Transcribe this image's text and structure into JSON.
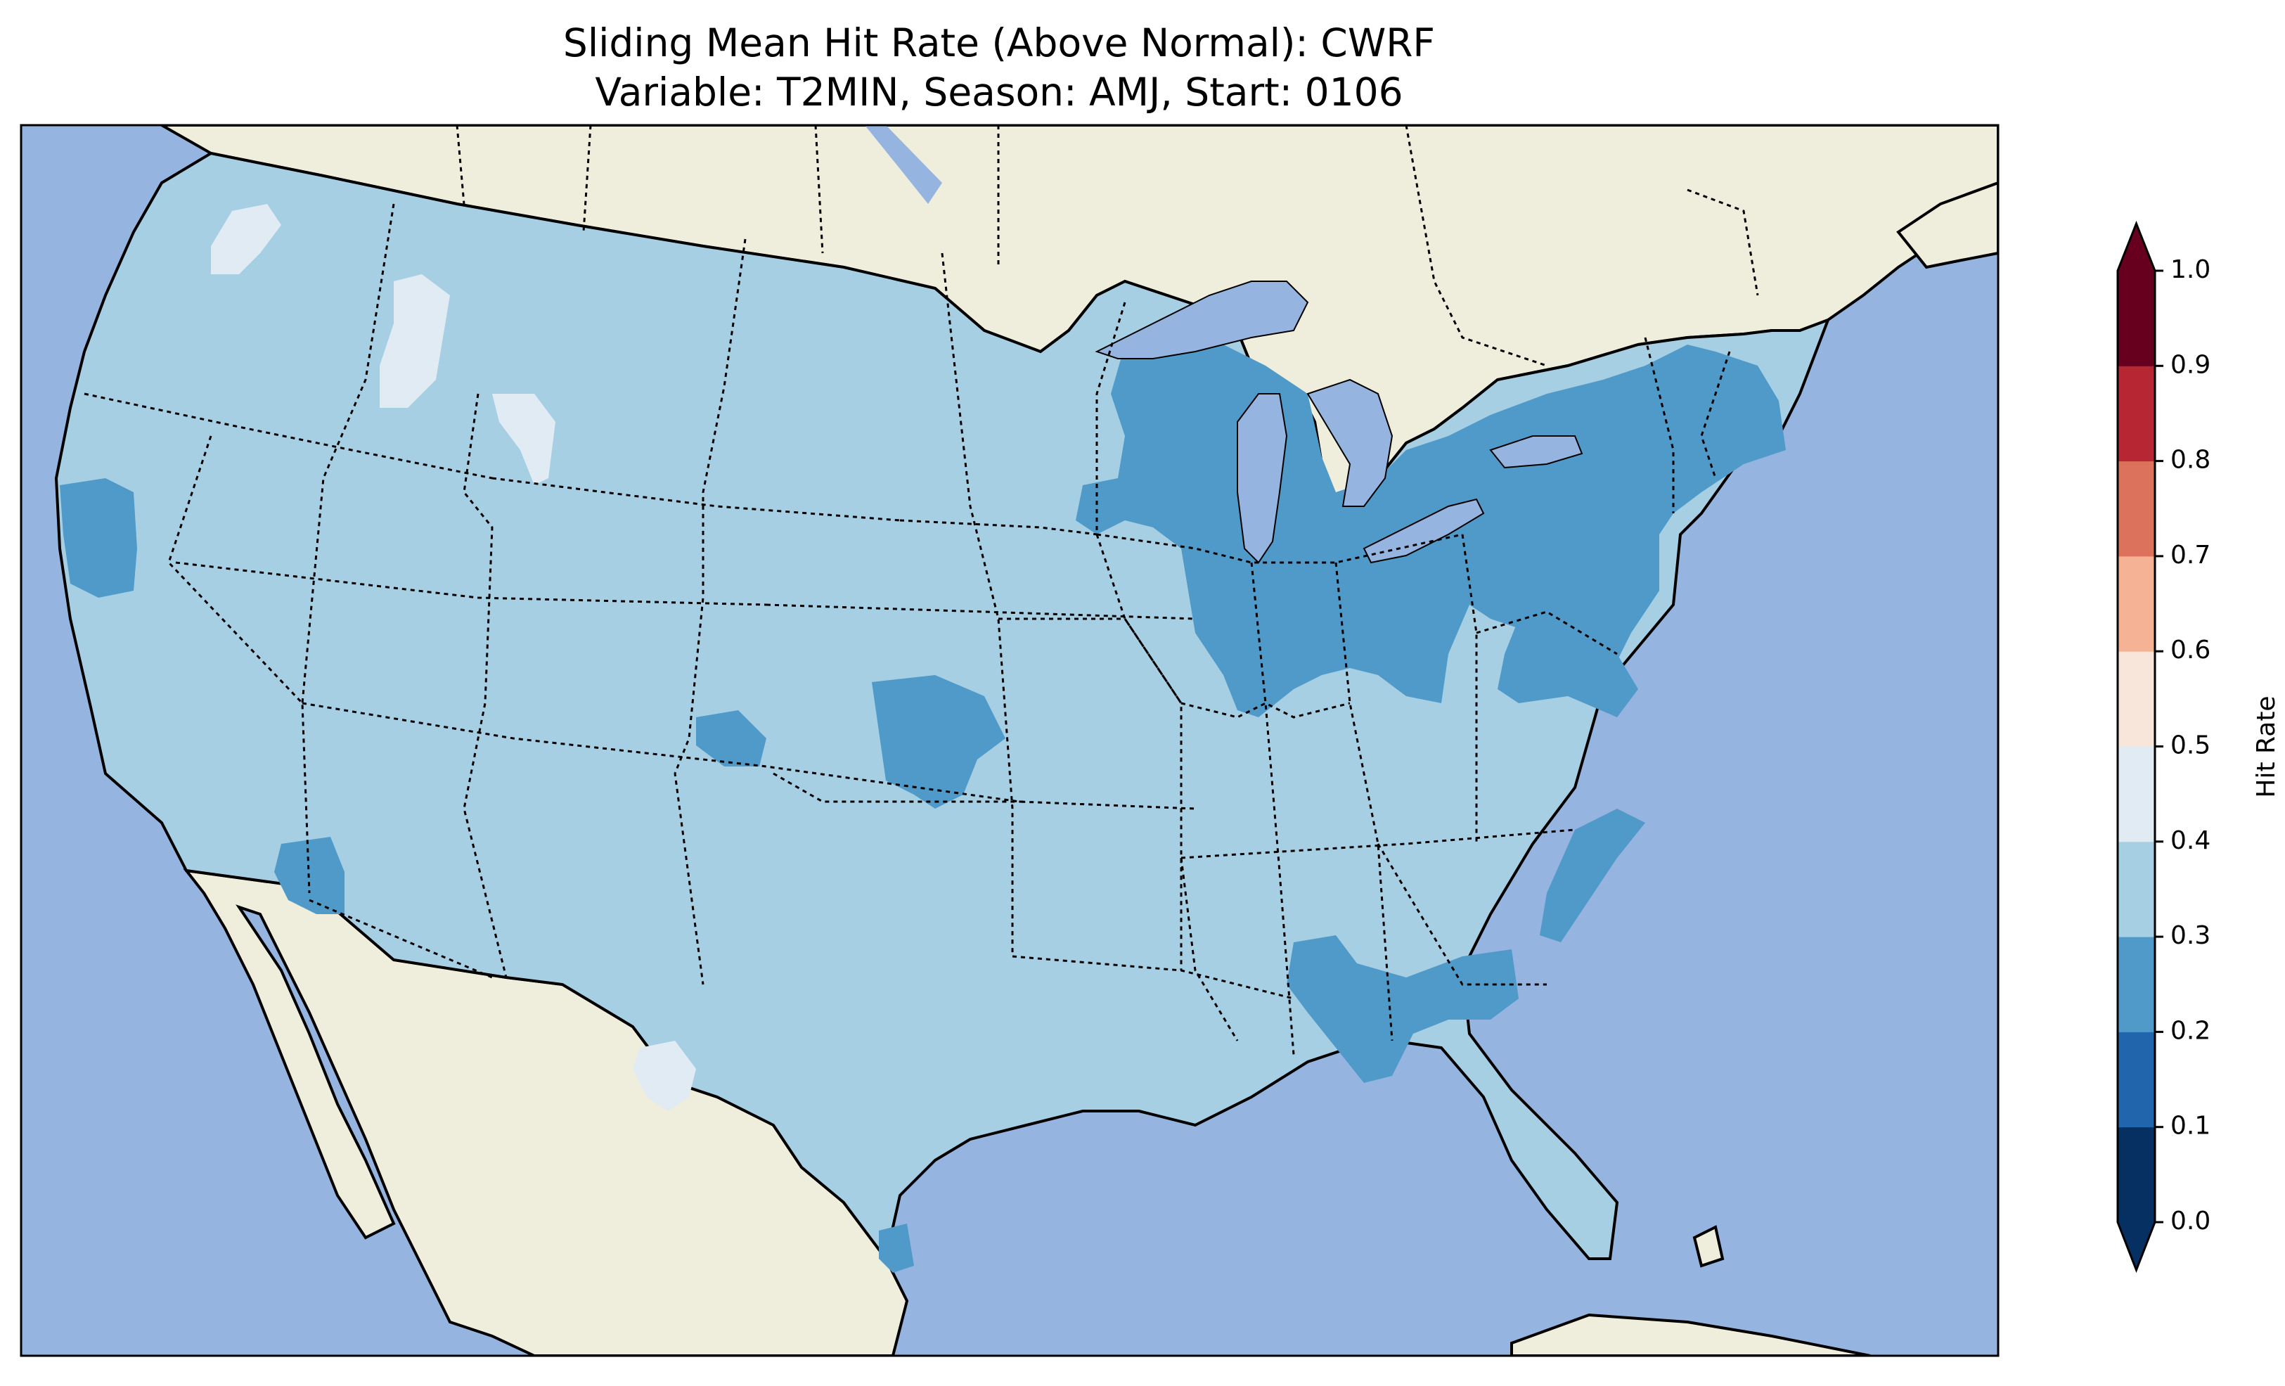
{
  "title": {
    "line1": "Sliding Mean Hit Rate (Above Normal): CWRF",
    "line2": "Variable: T2MIN, Season: AMJ, Start: 0106"
  },
  "colors": {
    "ocean": "#95b4e0",
    "land": "#efeedc",
    "lakes": "#95b4e0"
  },
  "colorbar": {
    "label": "Hit Rate",
    "extend": "both",
    "ticks": [
      "0.0",
      "0.1",
      "0.2",
      "0.3",
      "0.4",
      "0.5",
      "0.6",
      "0.7",
      "0.8",
      "0.9",
      "1.0"
    ],
    "bins": [
      {
        "range": [
          0.0,
          0.1
        ],
        "color": "#053061"
      },
      {
        "range": [
          0.1,
          0.2
        ],
        "color": "#2166ac"
      },
      {
        "range": [
          0.2,
          0.3
        ],
        "color": "#4f9ac8"
      },
      {
        "range": [
          0.3,
          0.4
        ],
        "color": "#a7cfe4"
      },
      {
        "range": [
          0.4,
          0.5
        ],
        "color": "#e0ebf3"
      },
      {
        "range": [
          0.5,
          0.6
        ],
        "color": "#f9e6db"
      },
      {
        "range": [
          0.6,
          0.7
        ],
        "color": "#f5b294"
      },
      {
        "range": [
          0.7,
          0.8
        ],
        "color": "#dc725b"
      },
      {
        "range": [
          0.8,
          0.9
        ],
        "color": "#b72633"
      },
      {
        "range": [
          0.9,
          1.0
        ],
        "color": "#67001f"
      }
    ]
  },
  "chart_data": {
    "type": "heatmap",
    "projection": "Lambert Conformal, CONUS domain",
    "field_summary": [
      {
        "area": "most of the United States",
        "hit_rate_bin": [
          0.3,
          0.4
        ]
      },
      {
        "area": "Great Lakes states, Ohio Valley, Pennsylvania, New York, New England coast",
        "hit_rate_bin": [
          0.2,
          0.3
        ]
      },
      {
        "area": "central California coast",
        "hit_rate_bin": [
          0.2,
          0.3
        ]
      },
      {
        "area": "southern California / lower Colorado River",
        "hit_rate_bin": [
          0.2,
          0.3
        ]
      },
      {
        "area": "southern Kansas / Oklahoma border",
        "hit_rate_bin": [
          0.2,
          0.3
        ]
      },
      {
        "area": "Gulf coast Alabama / Florida panhandle",
        "hit_rate_bin": [
          0.2,
          0.3
        ]
      },
      {
        "area": "Atlantic coast of the Carolinas",
        "hit_rate_bin": [
          0.2,
          0.3
        ]
      },
      {
        "area": "Idaho mountains, Washington Cascades, west Texas",
        "hit_rate_bin": [
          0.4,
          0.5
        ]
      }
    ]
  }
}
